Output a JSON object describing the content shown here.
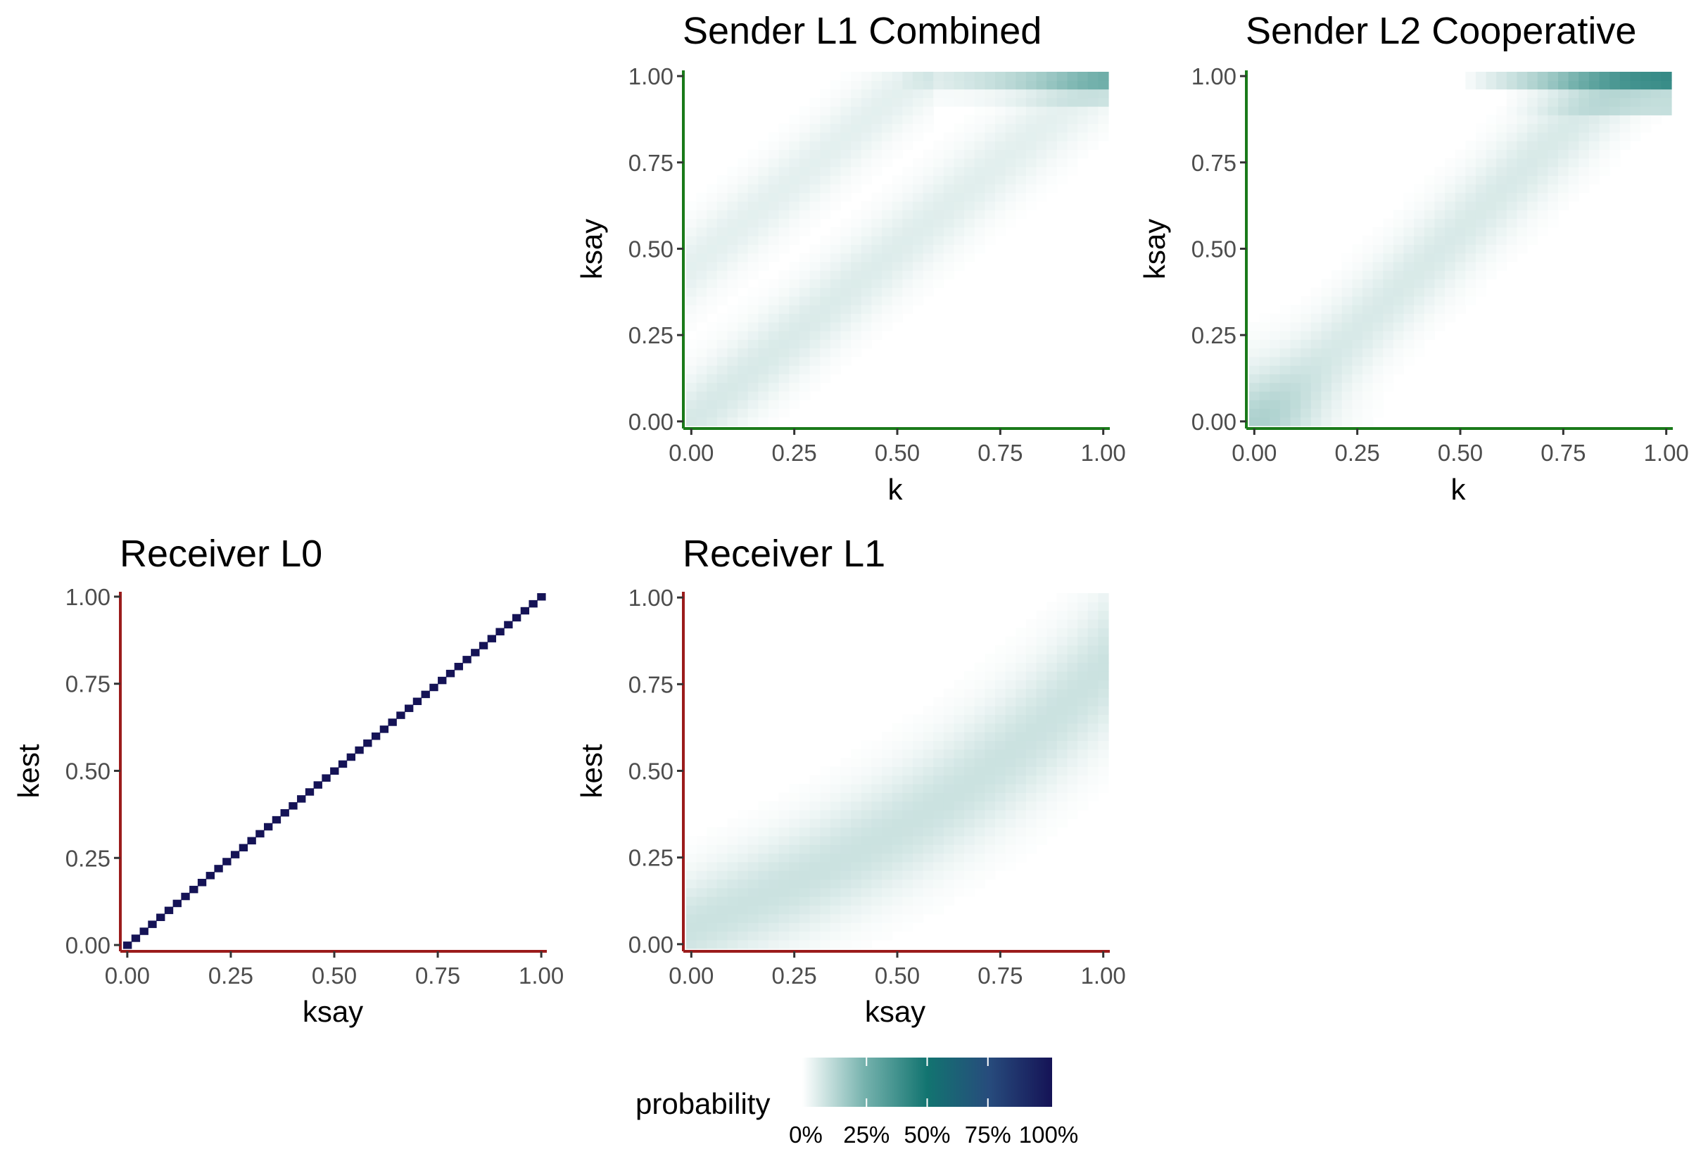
{
  "colors": {
    "sender_axis": "#1a7a1a",
    "receiver_axis": "#9b1c1c",
    "tick": "#333333",
    "scale": [
      "#ffffff",
      "#75b2ad",
      "#127470",
      "#274b7c",
      "#151356"
    ]
  },
  "legend": {
    "title": "probability",
    "ticks": [
      "0%",
      "25%",
      "50%",
      "75%",
      "100%"
    ],
    "tick_values": [
      0,
      0.25,
      0.5,
      0.75,
      1.0
    ]
  },
  "chart_data": [
    {
      "id": "p1",
      "type": "heatmap",
      "title": "Sender L1 Combined",
      "xlabel": "k",
      "ylabel": "ksay",
      "xlim": [
        0,
        1
      ],
      "ylim": [
        0,
        1
      ],
      "xticks": [
        "0.00",
        "0.25",
        "0.50",
        "0.75",
        "1.00"
      ],
      "yticks": [
        "0.00",
        "0.25",
        "0.50",
        "0.75",
        "1.00"
      ],
      "grid_n": 41,
      "pattern": "sender_combined",
      "axis_group": "sender"
    },
    {
      "id": "p2",
      "type": "heatmap",
      "title": "Sender L2 Cooperative",
      "xlabel": "k",
      "ylabel": "ksay",
      "xlim": [
        0,
        1
      ],
      "ylim": [
        0,
        1
      ],
      "xticks": [
        "0.00",
        "0.25",
        "0.50",
        "0.75",
        "1.00"
      ],
      "yticks": [
        "0.00",
        "0.25",
        "0.50",
        "0.75",
        "1.00"
      ],
      "grid_n": 41,
      "pattern": "sender_cooperative",
      "axis_group": "sender"
    },
    {
      "id": "p3",
      "type": "heatmap",
      "title": "Receiver L0",
      "xlabel": "ksay",
      "ylabel": "kest",
      "xlim": [
        0,
        1
      ],
      "ylim": [
        0,
        1
      ],
      "xticks": [
        "0.00",
        "0.25",
        "0.50",
        "0.75",
        "1.00"
      ],
      "yticks": [
        "0.00",
        "0.25",
        "0.50",
        "0.75",
        "1.00"
      ],
      "grid_n": 51,
      "pattern": "identity",
      "axis_group": "receiver"
    },
    {
      "id": "p4",
      "type": "heatmap",
      "title": "Receiver L1",
      "xlabel": "ksay",
      "ylabel": "kest",
      "xlim": [
        0,
        1
      ],
      "ylim": [
        0,
        1
      ],
      "xticks": [
        "0.00",
        "0.25",
        "0.50",
        "0.75",
        "1.00"
      ],
      "yticks": [
        "0.00",
        "0.25",
        "0.50",
        "0.75",
        "1.00"
      ],
      "grid_n": 41,
      "pattern": "receiver_l1",
      "axis_group": "receiver"
    }
  ]
}
